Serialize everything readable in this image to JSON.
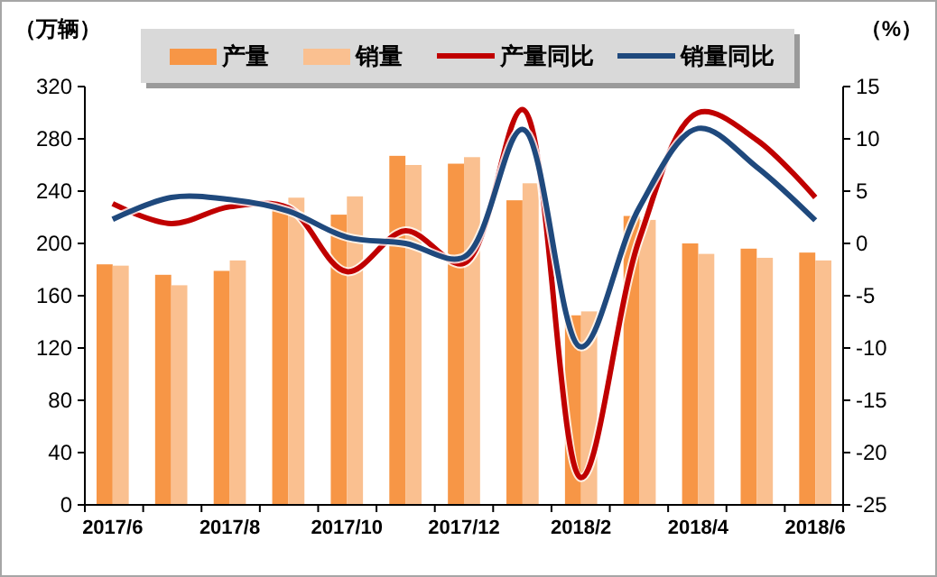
{
  "chart_data": {
    "type": "bar",
    "ylabel": "（万辆）",
    "y2label": "（%）",
    "categories": [
      "2017/6",
      null,
      "2017/8",
      null,
      "2017/10",
      null,
      "2017/12",
      null,
      "2018/2",
      null,
      "2018/4",
      null,
      "2018/6"
    ],
    "series": [
      {
        "name": "产量",
        "color": "#f79646",
        "values": [
          184,
          176,
          179,
          227,
          222,
          267,
          261,
          233,
          145,
          221,
          200,
          196,
          193
        ]
      },
      {
        "name": "销量",
        "color": "#fac090",
        "values": [
          183,
          168,
          187,
          235,
          236,
          260,
          266,
          246,
          148,
          218,
          192,
          189,
          187
        ]
      },
      {
        "name": "产量同比",
        "type": "line",
        "axis": "y2",
        "color": "#c00000",
        "values": [
          3.8,
          1.9,
          3.5,
          3.4,
          -2.7,
          1.2,
          -1.9,
          12.8,
          -22.4,
          0.5,
          12.5,
          9.9,
          4.4
        ]
      },
      {
        "name": "销量同比",
        "type": "line",
        "axis": "y2",
        "color": "#1f497d",
        "values": [
          2.3,
          4.4,
          4.2,
          3.1,
          0.6,
          0,
          -1.3,
          10.9,
          -9.9,
          3.5,
          11,
          7.3,
          2.2
        ]
      }
    ],
    "ylim": [
      0,
      320
    ],
    "yticks": [
      0,
      40,
      80,
      120,
      160,
      200,
      240,
      280,
      320
    ],
    "y2lim": [
      -25,
      15
    ],
    "y2ticks": [
      -25,
      -20,
      -15,
      -10,
      -5,
      0,
      5,
      10,
      15
    ],
    "legend": "top",
    "grid": false,
    "marker": "none"
  }
}
